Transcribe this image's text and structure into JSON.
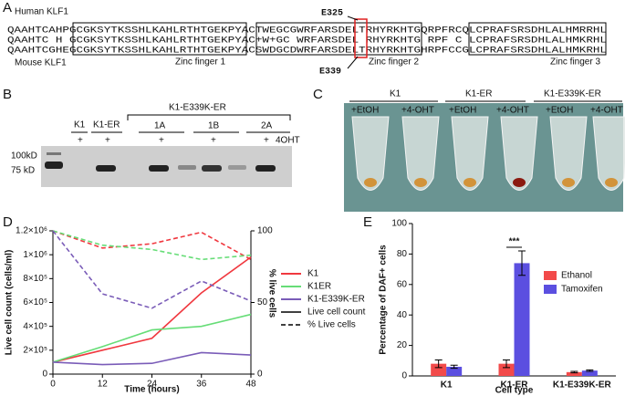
{
  "panel_a": {
    "label": "A",
    "human": "Human KLF1",
    "mouse": "Mouse KLF1",
    "sequences": [
      "QAAHTCAHPGCGKSYTKSSHLKAHLRTHTGEKPYACTWEGCGWRFARSDELTRHYRKHTGQRPFRCQLCPRAFSRSDHLALHMRRHL",
      "QAAHTC H GCGKSYTKSSHLKAHLRTHTGEKPYAC+W+GC WRFARSDEL RHYRKHTG RPF C LCPRAFSRSDHLALHMKRHL",
      "QAAHTCGHEGCGKSYTKSSHLKAHLRTHTGEKPYACSWDGCDWRFARSDELTRHYRKHTGHRPFCCGLCPRAFSRSDHLALHMKRHL"
    ],
    "mutations": [
      "E325",
      "E339"
    ],
    "domains": [
      "Zinc finger 1",
      "Zinc finger 2",
      "Zinc finger 3"
    ]
  },
  "panel_b": {
    "label": "B",
    "group": "K1-E339K-ER",
    "lanes": [
      "K1",
      "K1-ER",
      "1A",
      "1B",
      "2A"
    ],
    "treatment_marks": [
      "+",
      "+",
      "+",
      "+",
      "+"
    ],
    "treatment": "4OHT",
    "markers": [
      "100kD",
      "75 kD"
    ]
  },
  "panel_c": {
    "label": "C",
    "groups": [
      "K1",
      "K1-ER",
      "K1-E339K-ER"
    ],
    "conditions": [
      "+EtOH",
      "+4-OHT",
      "+EtOH",
      "+4-OHT",
      "+EtOH",
      "+4-OHT"
    ]
  },
  "chart_data": [
    {
      "type": "line",
      "label": "D",
      "x_label": "Time (hours)",
      "y_label": "Live cell count (cells/ml)",
      "y2_label": "% live cells",
      "x": [
        0,
        12,
        24,
        36,
        48
      ],
      "xlim": [
        0,
        48
      ],
      "xticks": [
        0,
        12,
        24,
        36,
        48
      ],
      "ylim": [
        0,
        1200000
      ],
      "yticks": [
        0,
        {
          "value": 200000,
          "label": "2×10⁵"
        },
        {
          "value": 400000,
          "label": "4×10⁵"
        },
        {
          "value": 600000,
          "label": "6×10⁵"
        },
        {
          "value": 800000,
          "label": "8×10⁵"
        },
        {
          "value": 1000000,
          "label": "1×10⁶"
        },
        {
          "value": 1200000,
          "label": "1.2×10⁶"
        }
      ],
      "y2lim": [
        0,
        100
      ],
      "y2ticks": [
        0,
        50,
        100
      ],
      "series": [
        {
          "name": "K1",
          "color": "#f0383f",
          "values": [
            100000,
            200000,
            300000,
            680000,
            980000
          ],
          "values_y2": [
            100,
            88,
            91,
            99,
            80
          ]
        },
        {
          "name": "K1ER",
          "color": "#66dd77",
          "values": [
            100000,
            230000,
            370000,
            400000,
            500000
          ],
          "values_y2": [
            100,
            90,
            87,
            80,
            83
          ]
        },
        {
          "name": "K1-E339K-ER",
          "color": "#7a5cb8",
          "values": [
            100000,
            80000,
            90000,
            180000,
            160000
          ],
          "values_y2": [
            100,
            56,
            46,
            65,
            51
          ]
        }
      ],
      "line_styles": [
        {
          "name": "Live cell count",
          "dash": false
        },
        {
          "name": "% Live cells",
          "dash": true
        }
      ]
    },
    {
      "type": "bar",
      "label": "E",
      "x_label": "Cell type",
      "y_label": "Percentage of DAF+ cells",
      "categories": [
        "K1",
        "K1-ER",
        "K1-E339K-ER"
      ],
      "ylim": [
        0,
        100
      ],
      "yticks": [
        0,
        20,
        40,
        60,
        80,
        100
      ],
      "series": [
        {
          "name": "Ethanol",
          "color": "#f24a4a",
          "values": [
            8,
            8,
            2.5
          ],
          "errors": [
            2.5,
            2.5,
            0.5
          ]
        },
        {
          "name": "Tamoxifen",
          "color": "#5b4fe0",
          "values": [
            6,
            74,
            3.5
          ],
          "errors": [
            1,
            8,
            0.5
          ]
        }
      ],
      "annotation": "***"
    }
  ]
}
